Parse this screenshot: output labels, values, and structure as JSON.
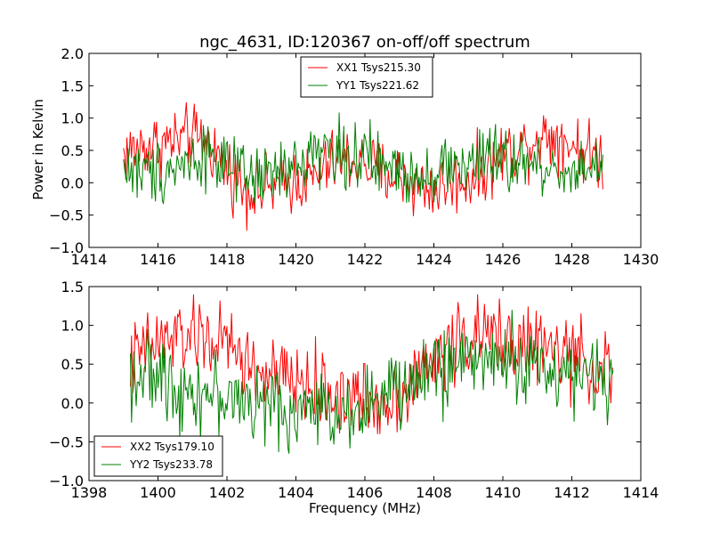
{
  "figure": {
    "title": "ngc_4631, ID:120367 on-off/off spectrum",
    "ylabel": "Power in Kelvin",
    "xlabel": "Frequency (MHz)"
  },
  "chart_data": [
    {
      "type": "line",
      "panel": "top",
      "xlim": [
        1414,
        1430
      ],
      "ylim": [
        -1.0,
        2.0
      ],
      "xticks": [
        1414,
        1416,
        1418,
        1420,
        1422,
        1424,
        1426,
        1428,
        1430
      ],
      "yticks": [
        -1.0,
        -0.5,
        0.0,
        0.5,
        1.0,
        1.5,
        2.0
      ],
      "xtick_labels": [
        "1414",
        "1416",
        "1418",
        "1420",
        "1422",
        "1424",
        "1426",
        "1428",
        "1430"
      ],
      "ytick_labels": [
        "−1.0",
        "−0.5",
        "0.0",
        "0.5",
        "1.0",
        "1.5",
        "2.0"
      ],
      "legend_position": "top-center",
      "grid": false,
      "series": [
        {
          "name": "XX1 Tsys215.30",
          "color": "#ff0000",
          "x": [
            1415.0,
            1415.5,
            1416.0,
            1416.5,
            1417.0,
            1417.5,
            1418.0,
            1418.5,
            1419.0,
            1419.5,
            1420.0,
            1420.5,
            1421.0,
            1421.5,
            1422.0,
            1422.5,
            1423.0,
            1423.5,
            1424.0,
            1424.5,
            1425.0,
            1425.5,
            1426.0,
            1426.5,
            1427.0,
            1427.5,
            1428.0,
            1428.5,
            1428.9
          ],
          "y": [
            0.45,
            0.55,
            0.6,
            0.65,
            0.7,
            0.6,
            0.2,
            -0.05,
            -0.15,
            -0.05,
            0.05,
            0.05,
            0.3,
            0.35,
            0.3,
            0.15,
            0.1,
            -0.05,
            -0.1,
            0.0,
            0.05,
            0.2,
            0.45,
            0.55,
            0.7,
            0.75,
            0.6,
            0.45,
            0.4
          ],
          "peak_range": [
            -0.8,
            1.5
          ]
        },
        {
          "name": "YY1 Tsys221.62",
          "color": "#008000",
          "x": [
            1415.0,
            1415.5,
            1416.0,
            1416.5,
            1417.0,
            1417.5,
            1418.0,
            1418.5,
            1419.0,
            1419.5,
            1420.0,
            1420.5,
            1421.0,
            1421.5,
            1422.0,
            1422.5,
            1423.0,
            1423.5,
            1424.0,
            1424.5,
            1425.0,
            1425.5,
            1426.0,
            1426.5,
            1427.0,
            1427.5,
            1428.0,
            1428.5,
            1428.9
          ],
          "y": [
            0.25,
            0.15,
            0.2,
            0.25,
            0.35,
            0.5,
            0.2,
            0.05,
            0.1,
            0.15,
            0.2,
            0.55,
            0.5,
            0.45,
            0.35,
            0.25,
            0.2,
            0.15,
            0.2,
            0.25,
            0.3,
            0.35,
            0.35,
            0.3,
            0.25,
            0.2,
            0.2,
            0.25,
            0.3
          ],
          "peak_range": [
            -0.7,
            1.3
          ]
        }
      ]
    },
    {
      "type": "line",
      "panel": "bottom",
      "xlim": [
        1398,
        1414
      ],
      "ylim": [
        -1.0,
        1.5
      ],
      "xticks": [
        1398,
        1400,
        1402,
        1404,
        1406,
        1408,
        1410,
        1412,
        1414
      ],
      "yticks": [
        -1.0,
        -0.5,
        0.0,
        0.5,
        1.0,
        1.5
      ],
      "xtick_labels": [
        "1398",
        "1400",
        "1402",
        "1404",
        "1406",
        "1408",
        "1410",
        "1412",
        "1414"
      ],
      "ytick_labels": [
        "−1.0",
        "−0.5",
        "0.0",
        "0.5",
        "1.0",
        "1.5"
      ],
      "legend_position": "bottom-left",
      "grid": false,
      "series": [
        {
          "name": "XX2 Tsys179.10",
          "color": "#ff0000",
          "x": [
            1399.2,
            1399.7,
            1400.2,
            1400.7,
            1401.2,
            1401.7,
            1402.2,
            1402.7,
            1403.2,
            1403.7,
            1404.2,
            1404.7,
            1405.2,
            1405.7,
            1406.2,
            1406.7,
            1407.2,
            1407.7,
            1408.2,
            1408.7,
            1409.2,
            1409.7,
            1410.2,
            1410.7,
            1411.2,
            1411.7,
            1412.2,
            1412.7,
            1413.2
          ],
          "y": [
            0.5,
            0.7,
            0.8,
            0.85,
            0.85,
            0.8,
            0.7,
            0.45,
            0.35,
            0.3,
            0.25,
            0.15,
            0.1,
            0.05,
            0.0,
            0.05,
            0.2,
            0.4,
            0.65,
            0.8,
            0.85,
            0.85,
            0.8,
            0.75,
            0.7,
            0.65,
            0.55,
            0.45,
            0.4
          ],
          "peak_range": [
            -0.4,
            1.4
          ]
        },
        {
          "name": "YY2 Tsys233.78",
          "color": "#008000",
          "x": [
            1399.2,
            1399.7,
            1400.2,
            1400.7,
            1401.2,
            1401.7,
            1402.2,
            1402.7,
            1403.2,
            1403.7,
            1404.2,
            1404.7,
            1405.2,
            1405.7,
            1406.2,
            1406.7,
            1407.2,
            1407.7,
            1408.2,
            1408.7,
            1409.2,
            1409.7,
            1410.2,
            1410.7,
            1411.2,
            1411.7,
            1412.2,
            1412.7,
            1413.2
          ],
          "y": [
            0.4,
            0.35,
            0.3,
            0.2,
            0.15,
            0.1,
            0.05,
            0.0,
            -0.05,
            -0.1,
            -0.1,
            -0.1,
            -0.1,
            -0.05,
            0.0,
            0.1,
            0.2,
            0.35,
            0.45,
            0.55,
            0.6,
            0.6,
            0.55,
            0.5,
            0.45,
            0.4,
            0.35,
            0.3,
            0.25
          ],
          "peak_range": [
            -0.95,
            1.25
          ]
        }
      ]
    }
  ]
}
